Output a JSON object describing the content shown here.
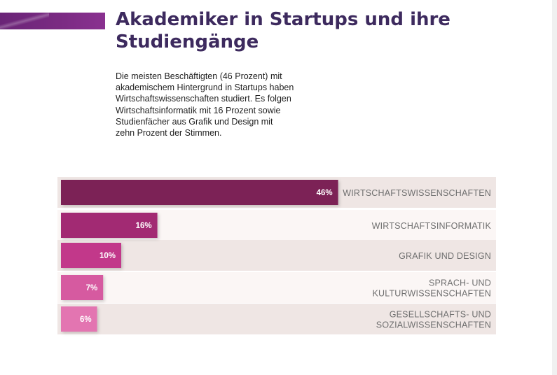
{
  "header": {
    "title": "Akademiker in Startups und ihre\nStudiengänge",
    "intro": "Die meisten Beschäftigten (46 Prozent) mit\nakademischem Hintergrund in Startups haben\nWirtschaftswissenschaften studiert. Es folgen\nWirtschaftsinformatik mit 16 Prozent sowie\nStudienfächer aus Grafik und Design mit\nzehn Prozent der Stimmen."
  },
  "colors": {
    "accent": "#7a2a82",
    "title": "#3d2a5e",
    "band_dark": "#efe6e4",
    "band_light": "#fbf6f5",
    "category_text": "#6f6f6f"
  },
  "chart_data": {
    "type": "bar",
    "orientation": "horizontal",
    "categories": [
      "WIRTSCHAFTSWISSENSCHAFTEN",
      "WIRTSCHAFTSINFORMATIK",
      "GRAFIK UND DESIGN",
      "SPRACH- UND\nKULTURWISSENSCHAFTEN",
      "GESELLSCHAFTS- UND\nSOZIALWISSENSCHAFTEN"
    ],
    "values": [
      46,
      16,
      10,
      7,
      6
    ],
    "value_labels": [
      "46%",
      "16%",
      "10%",
      "7%",
      "6%"
    ],
    "bar_colors": [
      "#7b2257",
      "#a22a73",
      "#c2378a",
      "#d65aa0",
      "#e375b1"
    ],
    "xlim": [
      0,
      100
    ],
    "grid": false,
    "legend": "none"
  }
}
